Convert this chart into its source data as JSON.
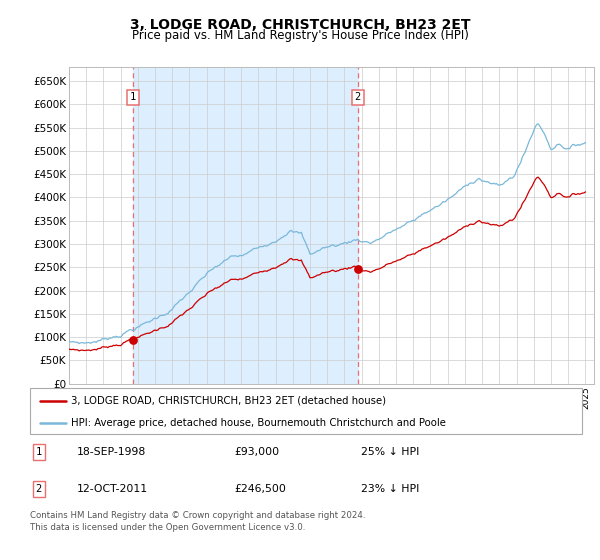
{
  "title": "3, LODGE ROAD, CHRISTCHURCH, BH23 2ET",
  "subtitle": "Price paid vs. HM Land Registry's House Price Index (HPI)",
  "legend_line1": "3, LODGE ROAD, CHRISTCHURCH, BH23 2ET (detached house)",
  "legend_line2": "HPI: Average price, detached house, Bournemouth Christchurch and Poole",
  "footnote": "Contains HM Land Registry data © Crown copyright and database right 2024.\nThis data is licensed under the Open Government Licence v3.0.",
  "table_row1_date": "18-SEP-1998",
  "table_row1_price": "£93,000",
  "table_row1_hpi": "25% ↓ HPI",
  "table_row2_date": "12-OCT-2011",
  "table_row2_price": "£246,500",
  "table_row2_hpi": "23% ↓ HPI",
  "sale1_date": 1998.72,
  "sale1_price": 93000,
  "sale2_date": 2011.78,
  "sale2_price": 246500,
  "hpi_color": "#7ab8d9",
  "price_color": "#cc0000",
  "dashed_color": "#e87070",
  "bg_shaded_color": "#ddeeff",
  "grid_color": "#cccccc",
  "ylim": [
    0,
    680000
  ],
  "xlim_start": 1995.0,
  "xlim_end": 2025.5,
  "yticks": [
    0,
    50000,
    100000,
    150000,
    200000,
    250000,
    300000,
    350000,
    400000,
    450000,
    500000,
    550000,
    600000,
    650000
  ],
  "ytick_labels": [
    "£0",
    "£50K",
    "£100K",
    "£150K",
    "£200K",
    "£250K",
    "£300K",
    "£350K",
    "£400K",
    "£450K",
    "£500K",
    "£550K",
    "£600K",
    "£650K"
  ]
}
